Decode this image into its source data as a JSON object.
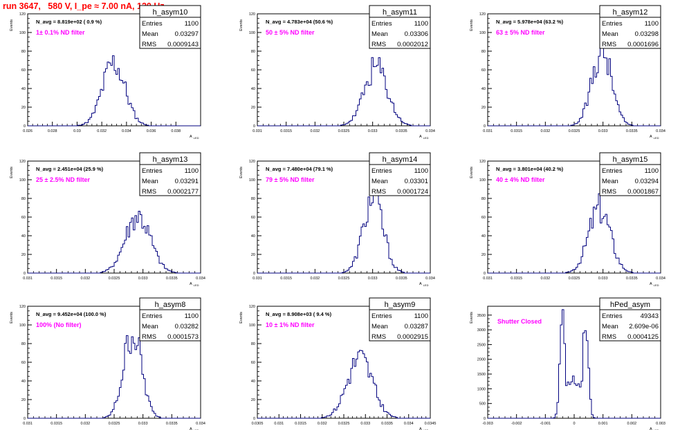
{
  "run_title": "run 3647,   580 V, I_pe ≈ 7.00 nA, 120 Hz",
  "stats_labels": {
    "entries": "Entries",
    "mean": "Mean",
    "rms": "RMS"
  },
  "ylabel": "Events",
  "xlabel_main": "A",
  "xlabel_sub": "LED",
  "colors": {
    "hist": "#00007f",
    "annot": "#ff00ff",
    "title": "#ff0000",
    "axis": "#000000"
  },
  "chart_data": [
    {
      "type": "histogram",
      "name": "h_asym10",
      "navg": "N_avg = 8.819e+02 ( 0.9 %)",
      "note": "1± 0.1% ND filter",
      "entries": "1100",
      "mean": "0.03297",
      "rms": "0.0009143",
      "xlim": [
        0.026,
        0.04
      ],
      "ylim": [
        0,
        120
      ],
      "xticks": [
        "0.026",
        "0.028",
        "0.03",
        "0.032",
        "0.034",
        "0.036",
        "0.038"
      ],
      "xtick_vals": [
        0.026,
        0.028,
        0.03,
        0.032,
        0.034,
        0.036,
        0.038
      ],
      "yticks": [
        "0",
        "20",
        "40",
        "60",
        "80",
        "100",
        "120"
      ],
      "ytick_vals": [
        0,
        20,
        40,
        60,
        80,
        100,
        120
      ],
      "shape": {
        "center": 0.03297,
        "sigma": 0.0009143,
        "peak": 67,
        "seed": 11
      }
    },
    {
      "type": "histogram",
      "name": "h_asym11",
      "navg": "N_avg = 4.783e+04 (50.6 %)",
      "note": "50 ± 5% ND filter",
      "entries": "1100",
      "mean": "0.03306",
      "rms": "0.0002012",
      "xlim": [
        0.031,
        0.034
      ],
      "ylim": [
        0,
        120
      ],
      "xticks": [
        "0.031",
        "0.0315",
        "0.032",
        "0.0325",
        "0.033",
        "0.0335",
        "0.034"
      ],
      "xtick_vals": [
        0.031,
        0.0315,
        0.032,
        0.0325,
        0.033,
        0.0335,
        0.034
      ],
      "yticks": [
        "0",
        "20",
        "40",
        "60",
        "80",
        "100",
        "120"
      ],
      "ytick_vals": [
        0,
        20,
        40,
        60,
        80,
        100,
        120
      ],
      "shape": {
        "center": 0.03306,
        "sigma": 0.0002012,
        "peak": 62,
        "seed": 23
      }
    },
    {
      "type": "histogram",
      "name": "h_asym12",
      "navg": "N_avg = 5.978e+04 (63.2 %)",
      "note": "63 ± 5% ND filter",
      "entries": "1100",
      "mean": "0.03298",
      "rms": "0.0001696",
      "xlim": [
        0.031,
        0.034
      ],
      "ylim": [
        0,
        120
      ],
      "xticks": [
        "0.031",
        "0.0315",
        "0.032",
        "0.0325",
        "0.033",
        "0.0335",
        "0.034"
      ],
      "xtick_vals": [
        0.031,
        0.0315,
        0.032,
        0.0325,
        0.033,
        0.0335,
        0.034
      ],
      "yticks": [
        "0",
        "20",
        "40",
        "60",
        "80",
        "100",
        "120"
      ],
      "ytick_vals": [
        0,
        20,
        40,
        60,
        80,
        100,
        120
      ],
      "shape": {
        "center": 0.03298,
        "sigma": 0.0001696,
        "peak": 82,
        "seed": 37
      }
    },
    {
      "type": "histogram",
      "name": "h_asym13",
      "navg": "N_avg = 2.451e+04 (25.9 %)",
      "note": "25 ± 2.5% ND filter",
      "entries": "1100",
      "mean": "0.03291",
      "rms": "0.0002177",
      "xlim": [
        0.031,
        0.034
      ],
      "ylim": [
        0,
        120
      ],
      "xticks": [
        "0.031",
        "0.0315",
        "0.032",
        "0.0325",
        "0.033",
        "0.0335",
        "0.034"
      ],
      "xtick_vals": [
        0.031,
        0.0315,
        0.032,
        0.0325,
        0.033,
        0.0335,
        0.034
      ],
      "yticks": [
        "0",
        "20",
        "40",
        "60",
        "80",
        "100",
        "120"
      ],
      "ytick_vals": [
        0,
        20,
        40,
        60,
        80,
        100,
        120
      ],
      "shape": {
        "center": 0.03291,
        "sigma": 0.0002177,
        "peak": 60,
        "seed": 41
      }
    },
    {
      "type": "histogram",
      "name": "h_asym14",
      "navg": "N_avg = 7.480e+04 (79.1 %)",
      "note": "79 ± 5% ND filter",
      "entries": "1100",
      "mean": "0.03301",
      "rms": "0.0001724",
      "xlim": [
        0.031,
        0.034
      ],
      "ylim": [
        0,
        120
      ],
      "xticks": [
        "0.031",
        "0.0315",
        "0.032",
        "0.0325",
        "0.033",
        "0.0335",
        "0.034"
      ],
      "xtick_vals": [
        0.031,
        0.0315,
        0.032,
        0.0325,
        0.033,
        0.0335,
        0.034
      ],
      "yticks": [
        "0",
        "20",
        "40",
        "60",
        "80",
        "100",
        "120"
      ],
      "ytick_vals": [
        0,
        20,
        40,
        60,
        80,
        100,
        120
      ],
      "shape": {
        "center": 0.03301,
        "sigma": 0.0001724,
        "peak": 80,
        "seed": 53
      }
    },
    {
      "type": "histogram",
      "name": "h_asym15",
      "navg": "N_avg = 3.801e+04 (40.2 %)",
      "note": "40 ± 4% ND filter",
      "entries": "1100",
      "mean": "0.03294",
      "rms": "0.0001867",
      "xlim": [
        0.031,
        0.034
      ],
      "ylim": [
        0,
        120
      ],
      "xticks": [
        "0.031",
        "0.0315",
        "0.032",
        "0.0325",
        "0.033",
        "0.0335",
        "0.034"
      ],
      "xtick_vals": [
        0.031,
        0.0315,
        0.032,
        0.0325,
        0.033,
        0.0335,
        0.034
      ],
      "yticks": [
        "0",
        "20",
        "40",
        "60",
        "80",
        "100",
        "120"
      ],
      "ytick_vals": [
        0,
        20,
        40,
        60,
        80,
        100,
        120
      ],
      "shape": {
        "center": 0.03294,
        "sigma": 0.0001867,
        "peak": 70,
        "seed": 67
      }
    },
    {
      "type": "histogram",
      "name": "h_asym8",
      "navg": "N_avg = 9.452e+04 (100.0 %)",
      "note": "100% (No filter)",
      "entries": "1100",
      "mean": "0.03282",
      "rms": "0.0001573",
      "xlim": [
        0.031,
        0.034
      ],
      "ylim": [
        0,
        120
      ],
      "xticks": [
        "0.031",
        "0.0315",
        "0.032",
        "0.0325",
        "0.033",
        "0.0335",
        "0.034"
      ],
      "xtick_vals": [
        0.031,
        0.0315,
        0.032,
        0.0325,
        0.033,
        0.0335,
        0.034
      ],
      "yticks": [
        "0",
        "20",
        "40",
        "60",
        "80",
        "100",
        "120"
      ],
      "ytick_vals": [
        0,
        20,
        40,
        60,
        80,
        100,
        120
      ],
      "shape": {
        "center": 0.03282,
        "sigma": 0.0001573,
        "peak": 92,
        "seed": 79
      }
    },
    {
      "type": "histogram",
      "name": "h_asym9",
      "navg": "N_avg = 8.908e+03 ( 9.4 %)",
      "note": "10 ± 1% ND filter",
      "entries": "1100",
      "mean": "0.03287",
      "rms": "0.0002915",
      "xlim": [
        0.0305,
        0.0345
      ],
      "ylim": [
        0,
        120
      ],
      "xticks": [
        "0.0305",
        "0.031",
        "0.0315",
        "0.032",
        "0.0325",
        "0.033",
        "0.0335",
        "0.034",
        "0.0345"
      ],
      "xtick_vals": [
        0.0305,
        0.031,
        0.0315,
        0.032,
        0.0325,
        0.033,
        0.0335,
        0.034,
        0.0345
      ],
      "yticks": [
        "0",
        "20",
        "40",
        "60",
        "80",
        "100",
        "120"
      ],
      "ytick_vals": [
        0,
        20,
        40,
        60,
        80,
        100,
        120
      ],
      "shape": {
        "center": 0.03287,
        "sigma": 0.0002915,
        "peak": 64,
        "seed": 83
      }
    },
    {
      "type": "histogram",
      "name": "hPed_asym",
      "navg": "",
      "note": "Shutter Closed",
      "entries": "49343",
      "mean": "2.609e-06",
      "rms": "0.0004125",
      "xlim": [
        -0.003,
        0.003
      ],
      "ylim": [
        0,
        3800
      ],
      "xticks": [
        "-0.003",
        "-0.002",
        "-0.001",
        "0",
        "0.001",
        "0.002",
        "0.003"
      ],
      "xtick_vals": [
        -0.003,
        -0.002,
        -0.001,
        0,
        0.001,
        0.002,
        0.003
      ],
      "yticks": [
        "0",
        "500",
        "1000",
        "1500",
        "2000",
        "2500",
        "3000",
        "3500"
      ],
      "ytick_vals": [
        0,
        500,
        1000,
        1500,
        2000,
        2500,
        3000,
        3500
      ],
      "shape": {
        "bimodal": true,
        "c1": -0.0004,
        "c2": 0.0004,
        "sigma": 9e-05,
        "peak": 3500,
        "valley": 1300,
        "seed": 97
      }
    }
  ]
}
